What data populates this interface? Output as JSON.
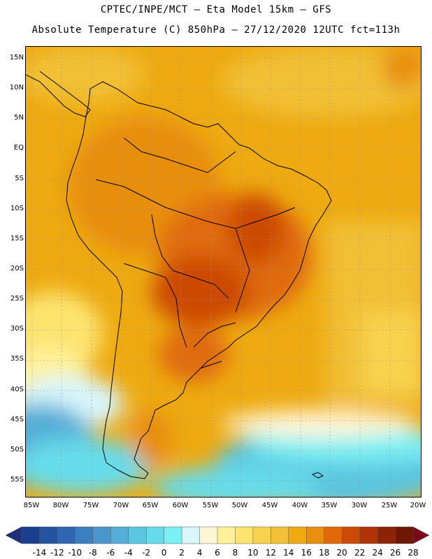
{
  "header": {
    "line1": "CPTEC/INPE/MCT –  Eta Model 15km – GFS",
    "line2": "Absolute Temperature (C) 850hPa – 27/12/2020 12UTC fct=113h"
  },
  "map": {
    "variable": "Absolute Temperature",
    "units": "C",
    "level": "850hPa",
    "model": "Eta Model 15km",
    "driver": "GFS",
    "lat_ticks": [
      "15N",
      "10N",
      "5N",
      "EQ",
      "5S",
      "10S",
      "15S",
      "20S",
      "25S",
      "30S",
      "35S",
      "40S",
      "45S",
      "50S",
      "55S"
    ],
    "lon_ticks": [
      "85W",
      "80W",
      "75W",
      "70W",
      "65W",
      "60W",
      "55W",
      "50W",
      "45W",
      "40W",
      "35W",
      "30W",
      "25W",
      "20W"
    ]
  },
  "colorbar": {
    "labels": [
      "-14",
      "-12",
      "-10",
      "-8",
      "-6",
      "-4",
      "-2",
      "0",
      "2",
      "4",
      "6",
      "8",
      "10",
      "12",
      "14",
      "16",
      "18",
      "20",
      "22",
      "24",
      "26",
      "28"
    ],
    "colors": [
      "#1a3f8f",
      "#2354a0",
      "#2e67b0",
      "#3c7fc0",
      "#4a96cc",
      "#55aed8",
      "#5cc6e0",
      "#66dcea",
      "#7af0f4",
      "#d8f6fb",
      "#fff6d8",
      "#fff19a",
      "#fde46e",
      "#f8d24e",
      "#f2c035",
      "#eeaa10",
      "#e88e10",
      "#e06a0a",
      "#cc4a05",
      "#b03205",
      "#8c2305",
      "#6e1705"
    ],
    "low_arrow_color": "#1d2f7a",
    "high_arrow_color": "#7a0a1a"
  }
}
